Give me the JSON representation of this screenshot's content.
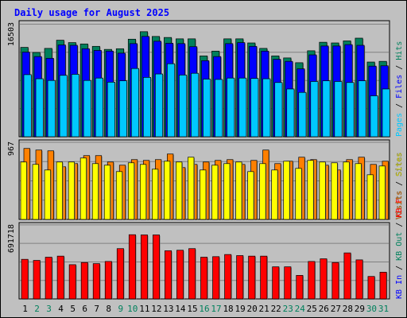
{
  "chart_data": {
    "type": "bar",
    "title": "Daily usage for August 2025",
    "categories": [
      "1",
      "2",
      "3",
      "4",
      "5",
      "6",
      "7",
      "8",
      "9",
      "10",
      "11",
      "12",
      "13",
      "14",
      "15",
      "16",
      "17",
      "18",
      "19",
      "20",
      "21",
      "22",
      "23",
      "24",
      "25",
      "26",
      "27",
      "28",
      "29",
      "30",
      "31"
    ],
    "weekend_days": [
      "2",
      "3",
      "9",
      "10",
      "16",
      "17",
      "23",
      "24",
      "30",
      "31"
    ],
    "panels": [
      {
        "id": "hits",
        "ylabel_max": "16503",
        "ymax": 16503,
        "right_label": [
          "Pages",
          "Files",
          "Hits"
        ],
        "series": [
          {
            "name": "Hits",
            "color": "#00805c",
            "values": [
              13100,
              12350,
              12950,
              14150,
              13800,
              13600,
              13250,
              12800,
              12900,
              14300,
              15400,
              14700,
              14550,
              14350,
              14350,
              11850,
              12550,
              14350,
              14350,
              13750,
              12950,
              11850,
              11550,
              10850,
              12600,
              13850,
              13750,
              14050,
              14450,
              10950,
              11050
            ]
          },
          {
            "name": "Files",
            "color": "#0000ff",
            "values": [
              12400,
              11750,
              11500,
              13450,
              13400,
              12900,
              12650,
              12550,
              12250,
              13650,
              14700,
              14000,
              13700,
              13650,
              13200,
              11150,
              11750,
              13650,
              13800,
              13250,
              12550,
              11350,
              11050,
              9950,
              12000,
              13300,
              13300,
              13500,
              13400,
              10350,
              10400
            ]
          },
          {
            "name": "Pages",
            "color": "#00c8ff",
            "values": [
              9100,
              8500,
              8250,
              9000,
              9150,
              8250,
              8600,
              8000,
              8200,
              10000,
              8700,
              9200,
              10700,
              9050,
              9300,
              8450,
              8400,
              8600,
              8600,
              8550,
              8500,
              7950,
              7000,
              6500,
              8100,
              8200,
              8100,
              7950,
              8200,
              6000,
              7000
            ]
          }
        ]
      },
      {
        "id": "sites",
        "ylabel_max": "967",
        "ymax": 967,
        "right_label": [
          "Visits",
          "Sites"
        ],
        "series": [
          {
            "name": "Visits",
            "color": "#ff8000",
            "values": [
              890,
              870,
              860,
              660,
              700,
              800,
              800,
              720,
              680,
              750,
              740,
              750,
              820,
              650,
              690,
              720,
              740,
              750,
              690,
              740,
              870,
              700,
              730,
              780,
              750,
              680,
              620,
              750,
              780,
              690,
              730
            ]
          },
          {
            "name": "Sites",
            "color": "#ffff00",
            "values": [
              720,
              690,
              620,
              720,
              720,
              770,
              700,
              680,
              600,
              710,
              690,
              630,
              730,
              720,
              780,
              620,
              680,
              700,
              720,
              600,
              700,
              620,
              730,
              640,
              740,
              720,
              710,
              720,
              700,
              560,
              670
            ]
          }
        ]
      },
      {
        "id": "kb",
        "ylabel_max": "691718",
        "ymax": 691718,
        "right_label": [
          "KB In",
          "KB Out",
          "KB F"
        ],
        "series": [
          {
            "name": "KB F",
            "color": "#ff0000",
            "values": [
              370000,
              360000,
              390000,
              400000,
              320000,
              340000,
              330000,
              350000,
              470000,
              600000,
              598000,
              598000,
              450000,
              455000,
              470000,
              390000,
              395000,
              415000,
              405000,
              400000,
              400000,
              300000,
              300000,
              220000,
              350000,
              375000,
              340000,
              430000,
              365000,
              210000,
              250000
            ]
          }
        ]
      }
    ]
  }
}
